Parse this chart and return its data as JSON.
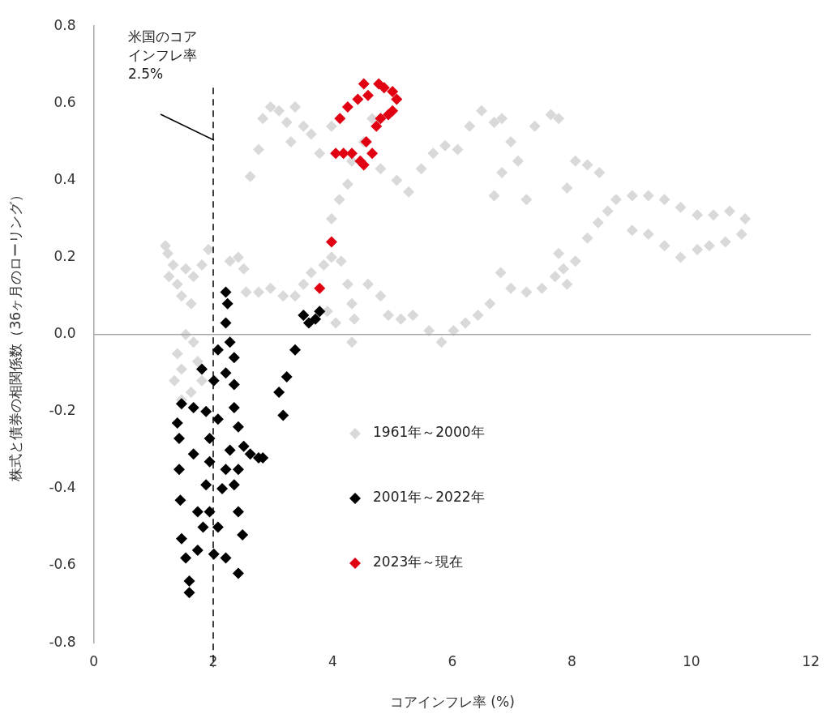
{
  "chart_data": {
    "type": "scatter",
    "xlabel": "コアインフレ率 (%)",
    "ylabel": "株式と債券の相関係数（36ヶ月のローリング）",
    "xlim": [
      0,
      12
    ],
    "xticks": [
      0,
      2,
      4,
      6,
      8,
      10,
      12
    ],
    "ylim": [
      -0.8,
      0.8
    ],
    "yticks": [
      -0.8,
      -0.6,
      -0.4,
      -0.2,
      {
        "value": 0,
        "label": "0.0"
      },
      0.2,
      0.4,
      0.6,
      0.8
    ],
    "grid": false,
    "legend": "center",
    "marker": "diamond",
    "ref_lines": [
      {
        "axis": "x",
        "value": 2,
        "label": "米国のコアインフレ率 2.5%",
        "line_style": "dashed",
        "color": "#000000"
      }
    ],
    "series": [
      {
        "name": "1961年～2000年",
        "color": "#d9d9d9",
        "x": [
          1.2,
          1.24,
          1.33,
          1.26,
          1.4,
          1.54,
          1.67,
          1.81,
          1.92,
          1.47,
          1.63,
          1.54,
          1.4,
          1.47,
          1.35,
          1.63,
          1.47,
          1.67,
          1.74,
          1.81,
          2.28,
          2.42,
          2.51,
          2.55,
          2.76,
          2.96,
          3.17,
          3.37,
          3.51,
          3.64,
          3.85,
          3.98,
          4.14,
          4.25,
          4.32,
          4.36,
          4.32,
          4.59,
          4.8,
          4.93,
          5.14,
          5.34,
          5.61,
          5.82,
          6.02,
          6.22,
          6.43,
          6.63,
          6.81,
          6.98,
          7.24,
          7.5,
          7.72,
          7.92,
          7.78,
          7.86,
          8.06,
          8.26,
          8.44,
          8.6,
          8.74,
          9.01,
          9.28,
          9.55,
          9.82,
          10.1,
          10.37,
          10.64,
          10.9,
          10.84,
          10.57,
          10.3,
          10.1,
          9.82,
          9.55,
          9.28,
          9.01,
          2.62,
          2.76,
          2.83,
          2.96,
          3.1,
          3.23,
          3.37,
          3.51,
          3.64,
          3.3,
          3.78,
          3.98,
          3.98,
          4.11,
          4.25,
          4.32,
          4.52,
          4.66,
          4.8,
          5.07,
          5.27,
          5.48,
          5.68,
          5.88,
          6.09,
          6.29,
          6.49,
          6.7,
          6.83,
          6.98,
          6.7,
          6.83,
          7.1,
          7.24,
          7.38,
          7.65,
          7.78,
          7.92,
          8.06,
          8.26,
          8.46,
          3.91,
          4.05
        ],
        "values": [
          0.23,
          0.21,
          0.18,
          0.15,
          0.13,
          0.17,
          0.15,
          0.18,
          0.22,
          0.1,
          0.08,
          0.0,
          -0.05,
          -0.09,
          -0.12,
          -0.15,
          -0.17,
          -0.02,
          -0.07,
          -0.12,
          0.19,
          0.2,
          0.17,
          0.11,
          0.11,
          0.12,
          0.1,
          0.1,
          0.13,
          0.16,
          0.18,
          0.2,
          0.19,
          0.13,
          0.08,
          0.04,
          -0.02,
          0.13,
          0.1,
          0.05,
          0.04,
          0.05,
          0.01,
          -0.02,
          0.01,
          0.03,
          0.05,
          0.08,
          0.16,
          0.12,
          0.11,
          0.12,
          0.15,
          0.13,
          0.21,
          0.17,
          0.19,
          0.25,
          0.29,
          0.32,
          0.35,
          0.36,
          0.36,
          0.35,
          0.33,
          0.31,
          0.31,
          0.32,
          0.3,
          0.26,
          0.24,
          0.23,
          0.22,
          0.2,
          0.23,
          0.26,
          0.27,
          0.41,
          0.48,
          0.56,
          0.59,
          0.58,
          0.55,
          0.59,
          0.54,
          0.52,
          0.5,
          0.47,
          0.54,
          0.3,
          0.35,
          0.39,
          0.45,
          0.5,
          0.56,
          0.43,
          0.4,
          0.37,
          0.43,
          0.47,
          0.49,
          0.48,
          0.54,
          0.58,
          0.55,
          0.56,
          0.5,
          0.36,
          0.42,
          0.45,
          0.35,
          0.54,
          0.57,
          0.56,
          0.38,
          0.45,
          0.44,
          0.42,
          0.06,
          0.03
        ]
      },
      {
        "name": "2001年～2022年",
        "color": "#000000",
        "x": [
          2.21,
          2.24,
          2.21,
          2.28,
          2.08,
          2.35,
          2.21,
          2.01,
          1.81,
          2.35,
          1.67,
          1.47,
          1.4,
          1.43,
          1.88,
          1.94,
          2.08,
          2.35,
          2.42,
          2.28,
          1.94,
          1.88,
          1.94,
          2.08,
          2.35,
          2.42,
          2.49,
          2.42,
          2.51,
          2.62,
          2.76,
          2.83,
          1.43,
          1.45,
          1.47,
          1.54,
          1.6,
          1.6,
          1.74,
          2.01,
          2.21,
          2.42,
          1.67,
          1.74,
          1.83,
          2.15,
          2.21,
          3.17,
          3.1,
          3.23,
          3.37,
          3.51,
          3.6,
          3.78,
          3.71
        ],
        "values": [
          0.11,
          0.08,
          0.03,
          -0.02,
          -0.04,
          -0.06,
          -0.1,
          -0.12,
          -0.09,
          -0.13,
          -0.19,
          -0.18,
          -0.23,
          -0.27,
          -0.2,
          -0.27,
          -0.22,
          -0.19,
          -0.24,
          -0.3,
          -0.33,
          -0.39,
          -0.46,
          -0.5,
          -0.39,
          -0.46,
          -0.52,
          -0.35,
          -0.29,
          -0.31,
          -0.32,
          -0.32,
          -0.35,
          -0.43,
          -0.53,
          -0.58,
          -0.64,
          -0.67,
          -0.56,
          -0.57,
          -0.58,
          -0.62,
          -0.31,
          -0.46,
          -0.5,
          -0.4,
          -0.35,
          -0.21,
          -0.15,
          -0.11,
          -0.04,
          0.05,
          0.03,
          0.06,
          0.04
        ]
      },
      {
        "name": "2023年～現在",
        "color": "#e00012",
        "x": [
          3.78,
          3.98,
          4.05,
          4.18,
          4.32,
          4.46,
          4.52,
          4.66,
          4.56,
          4.12,
          4.25,
          4.42,
          4.59,
          4.52,
          4.77,
          4.86,
          5.0,
          5.07,
          4.8,
          4.93,
          5.0,
          4.73
        ],
        "values": [
          0.12,
          0.24,
          0.47,
          0.47,
          0.47,
          0.45,
          0.44,
          0.47,
          0.5,
          0.56,
          0.59,
          0.61,
          0.62,
          0.65,
          0.65,
          0.64,
          0.63,
          0.61,
          0.56,
          0.57,
          0.58,
          0.54
        ]
      }
    ]
  }
}
